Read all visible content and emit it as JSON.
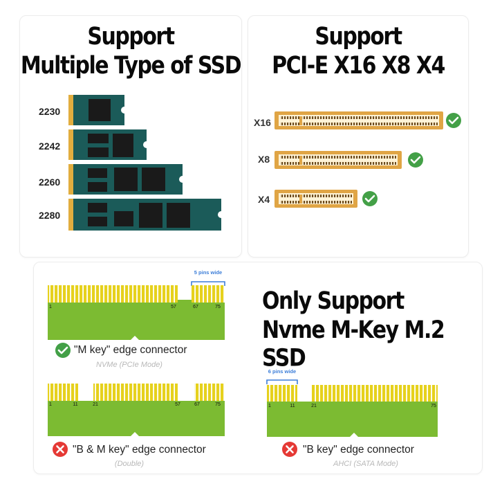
{
  "ssd_panel": {
    "title_line1": "Support",
    "title_line2": "Multiple Type of SSD",
    "sizes": [
      "2230",
      "2242",
      "2260",
      "2280"
    ]
  },
  "pcie_panel": {
    "title_line1": "Support",
    "title_line2": "PCI-E X16 X8 X4",
    "slots": [
      "X16",
      "X8",
      "X4"
    ]
  },
  "connector_panel": {
    "title_line1": "Only Support",
    "title_line2": "Nvme M-Key M.2 SSD",
    "m_key": {
      "pins_wide_label": "5 pins wide",
      "pin_numbers": [
        "1",
        "57",
        "67",
        "75"
      ],
      "caption": "\"M key\" edge connector",
      "subcaption": "NVMe (PCIe Mode)"
    },
    "bm_key": {
      "pin_numbers": [
        "1",
        "11",
        "21",
        "57",
        "67",
        "75"
      ],
      "caption": "\"B & M key\" edge connector",
      "subcaption": "(Double)"
    },
    "b_key": {
      "pins_wide_label": "6 pins wide",
      "pin_numbers": [
        "1",
        "11",
        "21",
        "75"
      ],
      "caption": "\"B key\" edge connector",
      "subcaption": "AHCI (SATA Mode)"
    }
  },
  "colors": {
    "ssd_pcb": "#1b5b59",
    "ssd_chip": "#1a1a1a",
    "gold_contact": "#e1ad3f",
    "pcie_slot": "#e0a545",
    "check_green": "#43a047",
    "cross_red": "#e53935",
    "connector_green": "#7cbb32",
    "connector_pin": "#e6d11c",
    "bracket_blue": "#3b7dd8"
  }
}
